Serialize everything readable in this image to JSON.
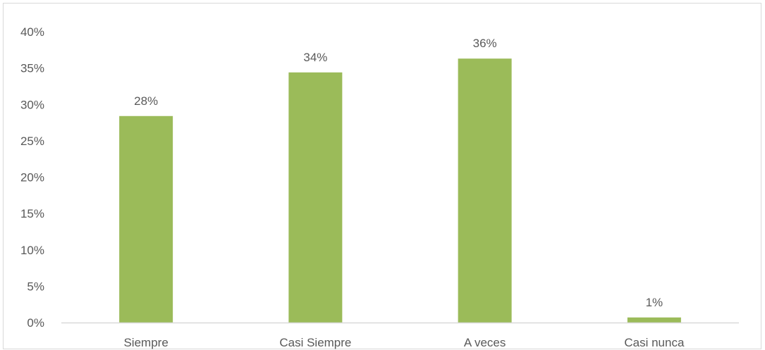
{
  "chart_data": {
    "type": "bar",
    "title": "",
    "xlabel": "",
    "ylabel": "",
    "categories": [
      "Siempre",
      "Casi Siempre",
      "A veces",
      "Casi nunca"
    ],
    "values": [
      0.284,
      0.344,
      0.363,
      0.007
    ],
    "data_labels": [
      "28%",
      "34%",
      "36%",
      "1%"
    ],
    "ylim": [
      0,
      0.4
    ],
    "yticks": [
      0,
      0.05,
      0.1,
      0.15,
      0.2,
      0.25,
      0.3,
      0.35,
      0.4
    ],
    "ytick_labels": [
      "0%",
      "5%",
      "10%",
      "15%",
      "20%",
      "25%",
      "30%",
      "35%",
      "40%"
    ],
    "grid": false,
    "legend": "none",
    "colors": {
      "bar": "#9bbb59",
      "axis": "#d9d9d9",
      "text": "#595959"
    }
  }
}
